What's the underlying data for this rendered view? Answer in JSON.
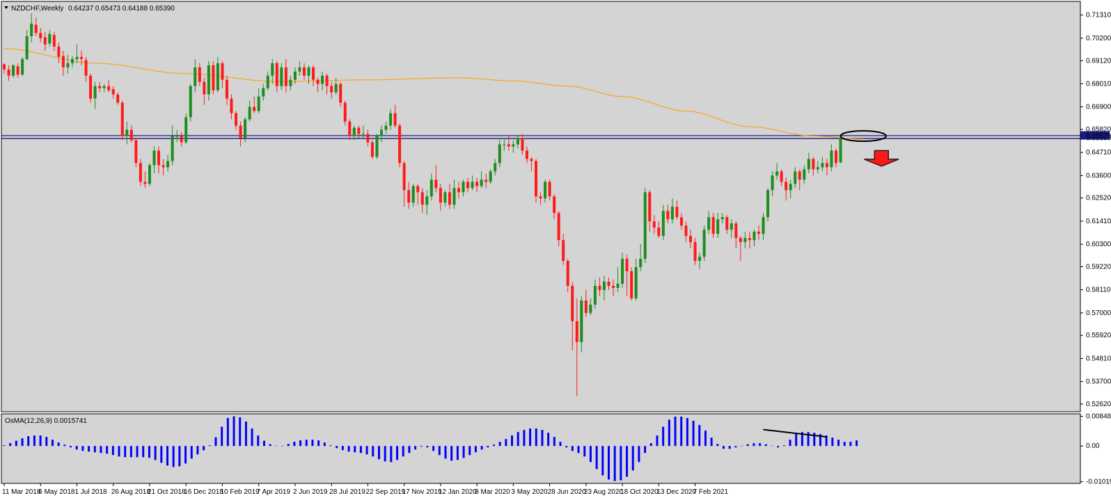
{
  "header": {
    "symbol_label": "NZDCHF,Weekly",
    "ohlc_label": "0.64237 0.65473 0.64188 0.65390"
  },
  "indicator": {
    "label": "OsMA(12,26,9) 0.0015741",
    "axis_ticks": [
      "0.0084873",
      "0.00",
      "-0.010196"
    ],
    "axis_values": [
      0.0084873,
      0.0,
      -0.010196
    ],
    "range": [
      -0.0103,
      0.0088
    ]
  },
  "colors": {
    "background": "#d4d4d4",
    "bull_candle": "#1e8c1e",
    "bear_candle": "#ff1a1a",
    "moving_average": "#ffa21f",
    "horizontal_line": "#1a1a80",
    "price_badge": "#1a1a80",
    "histogram": "#0000ff",
    "arrow": "#ff1a1a",
    "divergence_line": "#000000"
  },
  "chart_data": {
    "type": "candlestick",
    "ylim": [
      0.5225,
      0.7197
    ],
    "y_ticks": [
      "0.71310",
      "0.70200",
      "0.69120",
      "0.68010",
      "0.66900",
      "0.65820",
      "0.64710",
      "0.63600",
      "0.62520",
      "0.61410",
      "0.60300",
      "0.59220",
      "0.58110",
      "0.57000",
      "0.55920",
      "0.54810",
      "0.53700",
      "0.52620"
    ],
    "y_tick_values": [
      0.7131,
      0.702,
      0.6912,
      0.6801,
      0.669,
      0.6582,
      0.6471,
      0.636,
      0.6252,
      0.6141,
      0.603,
      0.5922,
      0.5811,
      0.57,
      0.5592,
      0.5481,
      0.537,
      0.5262
    ],
    "x_ticks": [
      "11 Mar 2018",
      "6 May 2018",
      "1 Jul 2018",
      "26 Aug 2018",
      "21 Oct 2018",
      "16 Dec 2018",
      "10 Feb 2019",
      "7 Apr 2019",
      "2 Jun 2019",
      "28 Jul 2019",
      "22 Sep 2019",
      "17 Nov 2019",
      "12 Jan 2020",
      "8 Mar 2020",
      "3 May 2020",
      "28 Jun 2020",
      "23 Aug 2020",
      "18 Oct 2020",
      "13 Dec 2020",
      "7 Feb 2021"
    ],
    "x_tick_weeks": [
      0,
      8,
      16,
      24,
      32,
      40,
      48,
      56,
      64,
      72,
      80,
      88,
      96,
      104,
      112,
      120,
      128,
      136,
      144,
      152
    ],
    "horizontal_lines": [
      0.6552,
      0.6538
    ],
    "price_badge": {
      "label": "0.65529",
      "value": 0.6553
    },
    "price_badge_under": "0.65390",
    "candles": [
      [
        0.6895,
        0.687,
        0.69,
        0.685
      ],
      [
        0.687,
        0.684,
        0.689,
        0.6815
      ],
      [
        0.684,
        0.689,
        0.6895,
        0.683
      ],
      [
        0.6885,
        0.6845,
        0.69,
        0.683
      ],
      [
        0.6845,
        0.692,
        0.693,
        0.684
      ],
      [
        0.692,
        0.703,
        0.706,
        0.6915
      ],
      [
        0.703,
        0.709,
        0.714,
        0.7
      ],
      [
        0.7085,
        0.7045,
        0.712,
        0.703
      ],
      [
        0.7045,
        0.702,
        0.707,
        0.7
      ],
      [
        0.7025,
        0.699,
        0.705,
        0.696
      ],
      [
        0.6995,
        0.704,
        0.706,
        0.698
      ],
      [
        0.7035,
        0.698,
        0.705,
        0.696
      ],
      [
        0.698,
        0.693,
        0.7,
        0.69
      ],
      [
        0.6935,
        0.688,
        0.696,
        0.684
      ],
      [
        0.688,
        0.69,
        0.694,
        0.685
      ],
      [
        0.69,
        0.692,
        0.6935,
        0.688
      ],
      [
        0.692,
        0.693,
        0.699,
        0.69
      ],
      [
        0.693,
        0.692,
        0.696,
        0.689
      ],
      [
        0.6915,
        0.684,
        0.693,
        0.681
      ],
      [
        0.684,
        0.673,
        0.685,
        0.671
      ],
      [
        0.673,
        0.679,
        0.681,
        0.668
      ],
      [
        0.679,
        0.678,
        0.681,
        0.676
      ],
      [
        0.678,
        0.679,
        0.68,
        0.676
      ],
      [
        0.679,
        0.677,
        0.682,
        0.676
      ],
      [
        0.6775,
        0.675,
        0.679,
        0.673
      ],
      [
        0.675,
        0.671,
        0.676,
        0.67
      ],
      [
        0.671,
        0.655,
        0.672,
        0.653
      ],
      [
        0.655,
        0.658,
        0.662,
        0.651
      ],
      [
        0.658,
        0.653,
        0.66,
        0.652
      ],
      [
        0.653,
        0.642,
        0.654,
        0.64
      ],
      [
        0.642,
        0.633,
        0.644,
        0.631
      ],
      [
        0.633,
        0.632,
        0.638,
        0.63
      ],
      [
        0.632,
        0.641,
        0.642,
        0.631
      ],
      [
        0.641,
        0.648,
        0.65,
        0.637
      ],
      [
        0.648,
        0.641,
        0.65,
        0.637
      ],
      [
        0.641,
        0.64,
        0.644,
        0.636
      ],
      [
        0.64,
        0.643,
        0.646,
        0.638
      ],
      [
        0.643,
        0.655,
        0.66,
        0.641
      ],
      [
        0.655,
        0.655,
        0.658,
        0.652
      ],
      [
        0.655,
        0.652,
        0.657,
        0.65
      ],
      [
        0.652,
        0.664,
        0.666,
        0.651
      ],
      [
        0.664,
        0.679,
        0.68,
        0.662
      ],
      [
        0.679,
        0.688,
        0.692,
        0.676
      ],
      [
        0.688,
        0.681,
        0.69,
        0.679
      ],
      [
        0.681,
        0.675,
        0.683,
        0.67
      ],
      [
        0.675,
        0.689,
        0.691,
        0.672
      ],
      [
        0.689,
        0.677,
        0.691,
        0.675
      ],
      [
        0.677,
        0.69,
        0.693,
        0.676
      ],
      [
        0.69,
        0.682,
        0.691,
        0.678
      ],
      [
        0.682,
        0.673,
        0.684,
        0.67
      ],
      [
        0.673,
        0.666,
        0.675,
        0.663
      ],
      [
        0.666,
        0.66,
        0.667,
        0.658
      ],
      [
        0.66,
        0.654,
        0.662,
        0.65
      ],
      [
        0.654,
        0.663,
        0.664,
        0.652
      ],
      [
        0.663,
        0.669,
        0.672,
        0.662
      ],
      [
        0.669,
        0.667,
        0.674,
        0.666
      ],
      [
        0.667,
        0.674,
        0.678,
        0.666
      ],
      [
        0.674,
        0.678,
        0.68,
        0.672
      ],
      [
        0.678,
        0.684,
        0.686,
        0.677
      ],
      [
        0.684,
        0.69,
        0.692,
        0.68
      ],
      [
        0.69,
        0.679,
        0.691,
        0.676
      ],
      [
        0.679,
        0.688,
        0.69,
        0.677
      ],
      [
        0.688,
        0.679,
        0.692,
        0.676
      ],
      [
        0.679,
        0.682,
        0.684,
        0.677
      ],
      [
        0.682,
        0.686,
        0.688,
        0.68
      ],
      [
        0.686,
        0.688,
        0.691,
        0.684
      ],
      [
        0.688,
        0.684,
        0.69,
        0.682
      ],
      [
        0.684,
        0.688,
        0.689,
        0.68
      ],
      [
        0.688,
        0.682,
        0.689,
        0.679
      ],
      [
        0.682,
        0.68,
        0.683,
        0.676
      ],
      [
        0.68,
        0.684,
        0.686,
        0.677
      ],
      [
        0.684,
        0.679,
        0.685,
        0.675
      ],
      [
        0.679,
        0.676,
        0.681,
        0.673
      ],
      [
        0.676,
        0.68,
        0.683,
        0.675
      ],
      [
        0.68,
        0.671,
        0.681,
        0.669
      ],
      [
        0.671,
        0.662,
        0.672,
        0.66
      ],
      [
        0.662,
        0.655,
        0.663,
        0.653
      ],
      [
        0.655,
        0.659,
        0.66,
        0.653
      ],
      [
        0.659,
        0.656,
        0.66,
        0.654
      ],
      [
        0.656,
        0.656,
        0.66,
        0.654
      ],
      [
        0.656,
        0.652,
        0.658,
        0.65
      ],
      [
        0.652,
        0.645,
        0.653,
        0.644
      ],
      [
        0.645,
        0.655,
        0.656,
        0.644
      ],
      [
        0.655,
        0.658,
        0.66,
        0.652
      ],
      [
        0.658,
        0.66,
        0.662,
        0.656
      ],
      [
        0.66,
        0.666,
        0.668,
        0.658
      ],
      [
        0.666,
        0.66,
        0.67,
        0.659
      ],
      [
        0.66,
        0.642,
        0.661,
        0.64
      ],
      [
        0.642,
        0.629,
        0.643,
        0.621
      ],
      [
        0.629,
        0.623,
        0.633,
        0.62
      ],
      [
        0.623,
        0.631,
        0.632,
        0.621
      ],
      [
        0.631,
        0.628,
        0.632,
        0.622
      ],
      [
        0.628,
        0.622,
        0.63,
        0.618
      ],
      [
        0.622,
        0.626,
        0.629,
        0.617
      ],
      [
        0.626,
        0.634,
        0.637,
        0.624
      ],
      [
        0.634,
        0.63,
        0.641,
        0.628
      ],
      [
        0.63,
        0.623,
        0.632,
        0.619
      ],
      [
        0.623,
        0.628,
        0.629,
        0.621
      ],
      [
        0.628,
        0.622,
        0.632,
        0.62
      ],
      [
        0.622,
        0.63,
        0.634,
        0.62
      ],
      [
        0.63,
        0.628,
        0.633,
        0.625
      ],
      [
        0.628,
        0.633,
        0.634,
        0.626
      ],
      [
        0.633,
        0.63,
        0.635,
        0.628
      ],
      [
        0.63,
        0.633,
        0.636,
        0.629
      ],
      [
        0.633,
        0.631,
        0.635,
        0.628
      ],
      [
        0.631,
        0.634,
        0.638,
        0.63
      ],
      [
        0.634,
        0.633,
        0.637,
        0.63
      ],
      [
        0.633,
        0.638,
        0.639,
        0.632
      ],
      [
        0.638,
        0.642,
        0.644,
        0.636
      ],
      [
        0.642,
        0.651,
        0.654,
        0.64
      ],
      [
        0.651,
        0.651,
        0.654,
        0.648
      ],
      [
        0.651,
        0.65,
        0.655,
        0.648
      ],
      [
        0.65,
        0.651,
        0.653,
        0.647
      ],
      [
        0.651,
        0.654,
        0.655,
        0.649
      ],
      [
        0.654,
        0.648,
        0.656,
        0.646
      ],
      [
        0.648,
        0.644,
        0.65,
        0.642
      ],
      [
        0.644,
        0.643,
        0.645,
        0.638
      ],
      [
        0.643,
        0.626,
        0.644,
        0.623
      ],
      [
        0.626,
        0.625,
        0.628,
        0.622
      ],
      [
        0.625,
        0.633,
        0.634,
        0.623
      ],
      [
        0.633,
        0.626,
        0.634,
        0.624
      ],
      [
        0.626,
        0.618,
        0.627,
        0.615
      ],
      [
        0.618,
        0.605,
        0.619,
        0.602
      ],
      [
        0.605,
        0.595,
        0.608,
        0.593
      ],
      [
        0.595,
        0.583,
        0.596,
        0.58
      ],
      [
        0.583,
        0.566,
        0.585,
        0.552
      ],
      [
        0.566,
        0.556,
        0.577,
        0.53
      ],
      [
        0.556,
        0.576,
        0.578,
        0.551
      ],
      [
        0.576,
        0.57,
        0.581,
        0.568
      ],
      [
        0.57,
        0.574,
        0.577,
        0.569
      ],
      [
        0.574,
        0.583,
        0.586,
        0.572
      ],
      [
        0.583,
        0.581,
        0.587,
        0.578
      ],
      [
        0.581,
        0.585,
        0.588,
        0.576
      ],
      [
        0.585,
        0.583,
        0.587,
        0.581
      ],
      [
        0.583,
        0.582,
        0.586,
        0.578
      ],
      [
        0.582,
        0.584,
        0.592,
        0.58
      ],
      [
        0.584,
        0.596,
        0.599,
        0.582
      ],
      [
        0.596,
        0.59,
        0.598,
        0.578
      ],
      [
        0.59,
        0.577,
        0.592,
        0.576
      ],
      [
        0.577,
        0.592,
        0.596,
        0.576
      ],
      [
        0.592,
        0.596,
        0.603,
        0.59
      ],
      [
        0.596,
        0.628,
        0.63,
        0.594
      ],
      [
        0.628,
        0.614,
        0.629,
        0.609
      ],
      [
        0.614,
        0.611,
        0.617,
        0.608
      ],
      [
        0.611,
        0.607,
        0.614,
        0.606
      ],
      [
        0.607,
        0.619,
        0.622,
        0.605
      ],
      [
        0.619,
        0.615,
        0.622,
        0.613
      ],
      [
        0.615,
        0.621,
        0.625,
        0.613
      ],
      [
        0.621,
        0.616,
        0.624,
        0.615
      ],
      [
        0.616,
        0.612,
        0.618,
        0.61
      ],
      [
        0.612,
        0.607,
        0.614,
        0.604
      ],
      [
        0.607,
        0.604,
        0.61,
        0.601
      ],
      [
        0.604,
        0.595,
        0.606,
        0.593
      ],
      [
        0.595,
        0.597,
        0.599,
        0.591
      ],
      [
        0.597,
        0.61,
        0.612,
        0.595
      ],
      [
        0.61,
        0.616,
        0.619,
        0.608
      ],
      [
        0.616,
        0.608,
        0.618,
        0.606
      ],
      [
        0.608,
        0.615,
        0.618,
        0.606
      ],
      [
        0.615,
        0.616,
        0.618,
        0.613
      ],
      [
        0.616,
        0.61,
        0.617,
        0.608
      ],
      [
        0.61,
        0.613,
        0.615,
        0.606
      ],
      [
        0.613,
        0.606,
        0.614,
        0.601
      ],
      [
        0.606,
        0.604,
        0.607,
        0.595
      ],
      [
        0.604,
        0.606,
        0.609,
        0.601
      ],
      [
        0.606,
        0.605,
        0.609,
        0.601
      ],
      [
        0.605,
        0.609,
        0.61,
        0.602
      ],
      [
        0.609,
        0.608,
        0.612,
        0.605
      ],
      [
        0.608,
        0.616,
        0.618,
        0.605
      ],
      [
        0.616,
        0.629,
        0.63,
        0.614
      ],
      [
        0.629,
        0.636,
        0.638,
        0.626
      ],
      [
        0.636,
        0.638,
        0.642,
        0.634
      ],
      [
        0.638,
        0.633,
        0.639,
        0.631
      ],
      [
        0.633,
        0.629,
        0.635,
        0.624
      ],
      [
        0.629,
        0.632,
        0.634,
        0.625
      ],
      [
        0.632,
        0.638,
        0.64,
        0.63
      ],
      [
        0.638,
        0.634,
        0.639,
        0.629
      ],
      [
        0.634,
        0.639,
        0.641,
        0.632
      ],
      [
        0.639,
        0.644,
        0.647,
        0.637
      ],
      [
        0.644,
        0.639,
        0.645,
        0.636
      ],
      [
        0.639,
        0.64,
        0.643,
        0.637
      ],
      [
        0.64,
        0.642,
        0.645,
        0.638
      ],
      [
        0.642,
        0.64,
        0.644,
        0.636
      ],
      [
        0.64,
        0.648,
        0.651,
        0.638
      ],
      [
        0.648,
        0.642,
        0.649,
        0.64
      ],
      [
        0.6424,
        0.6539,
        0.6547,
        0.6419
      ]
    ],
    "moving_average_anchors": [
      [
        0,
        0.697
      ],
      [
        20,
        0.69
      ],
      [
        40,
        0.685
      ],
      [
        60,
        0.6812
      ],
      [
        80,
        0.682
      ],
      [
        100,
        0.683
      ],
      [
        112,
        0.6815
      ],
      [
        124,
        0.679
      ],
      [
        136,
        0.674
      ],
      [
        150,
        0.667
      ],
      [
        164,
        0.6595
      ],
      [
        178,
        0.655
      ],
      [
        189,
        0.6535
      ]
    ],
    "osma": [
      0.0002,
      0.0008,
      0.0015,
      0.0022,
      0.0028,
      0.003,
      0.003,
      0.0026,
      0.0018,
      0.001,
      0.0004,
      -0.0004,
      -0.001,
      -0.0014,
      -0.0016,
      -0.0018,
      -0.002,
      -0.0022,
      -0.0026,
      -0.003,
      -0.0032,
      -0.0032,
      -0.0032,
      -0.0032,
      -0.0034,
      -0.004,
      -0.0048,
      -0.0056,
      -0.006,
      -0.0058,
      -0.005,
      -0.0036,
      -0.0024,
      -0.0012,
      0.0002,
      0.0025,
      0.0055,
      0.008,
      0.0085,
      0.0082,
      0.007,
      0.005,
      0.003,
      0.0015,
      0.0005,
      0.0001,
      0.0001,
      0.0006,
      0.0012,
      0.0016,
      0.0018,
      0.0018,
      0.0016,
      0.001,
      0.0002,
      -0.0006,
      -0.0012,
      -0.0016,
      -0.0018,
      -0.002,
      -0.0024,
      -0.003,
      -0.0038,
      -0.0044,
      -0.0046,
      -0.004,
      -0.003,
      -0.002,
      -0.001,
      -0.0002,
      -0.0004,
      -0.0014,
      -0.0026,
      -0.0036,
      -0.0042,
      -0.004,
      -0.0034,
      -0.0026,
      -0.0018,
      -0.001,
      -0.0004,
      0.0004,
      0.0012,
      0.002,
      0.003,
      0.004,
      0.0046,
      0.005,
      0.005,
      0.0046,
      0.0038,
      0.0026,
      0.0012,
      -0.0004,
      -0.0014,
      -0.002,
      -0.003,
      -0.0046,
      -0.0066,
      -0.0084,
      -0.0096,
      -0.01,
      -0.0098,
      -0.0088,
      -0.007,
      -0.0046,
      -0.002,
      0.0008,
      0.003,
      0.0055,
      0.0075,
      0.0084,
      0.0084,
      0.008,
      0.0072,
      0.006,
      0.0044,
      0.0024,
      0.0006,
      -0.0008,
      -0.0008,
      -0.0004,
      0.0001,
      0.0005,
      0.0008,
      0.0008,
      0.0005,
      0.0001,
      -0.0004,
      0.0002,
      0.0018,
      0.0036,
      0.004,
      0.004,
      0.0038,
      0.0034,
      0.003,
      0.0024,
      0.0018,
      0.0012,
      0.0012,
      0.0016
    ],
    "osma_start_week": 0,
    "osma_step_weeks": 1.33,
    "annotations": {
      "ellipse": {
        "center_week": 189,
        "center_price": 0.655,
        "rx_weeks": 5,
        "ry_price": 0.0025
      },
      "arrow_down": {
        "center_week": 193,
        "top_price": 0.648,
        "bottom_price": 0.6405
      },
      "divergence_line": {
        "from": [
          167,
          0.0047
        ],
        "to": [
          181,
          0.0026
        ]
      }
    }
  }
}
